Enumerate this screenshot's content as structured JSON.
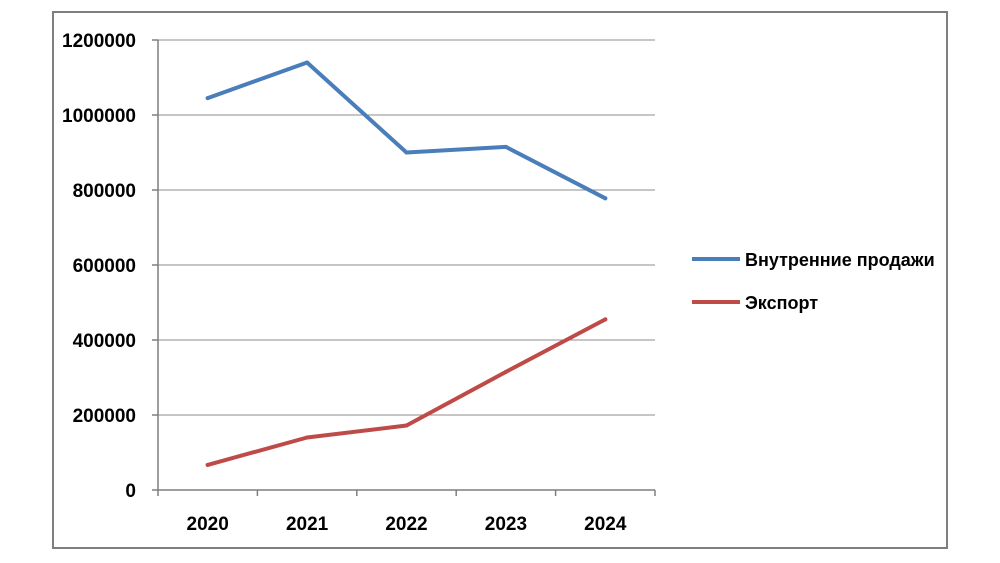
{
  "chart_data": {
    "type": "line",
    "categories": [
      "2020",
      "2021",
      "2022",
      "2023",
      "2024"
    ],
    "series": [
      {
        "name": "Внутренние продажи",
        "color": "#4a7ebb",
        "values": [
          1045000,
          1140000,
          900000,
          915000,
          778000
        ]
      },
      {
        "name": "Экспорт",
        "color": "#be4b48",
        "values": [
          67000,
          140000,
          172000,
          315000,
          455000
        ]
      }
    ],
    "yticks": [
      "0",
      "200000",
      "400000",
      "600000",
      "800000",
      "1000000",
      "1200000"
    ],
    "ylim": [
      0,
      1200000
    ],
    "grid": true,
    "legend_position": "right"
  }
}
